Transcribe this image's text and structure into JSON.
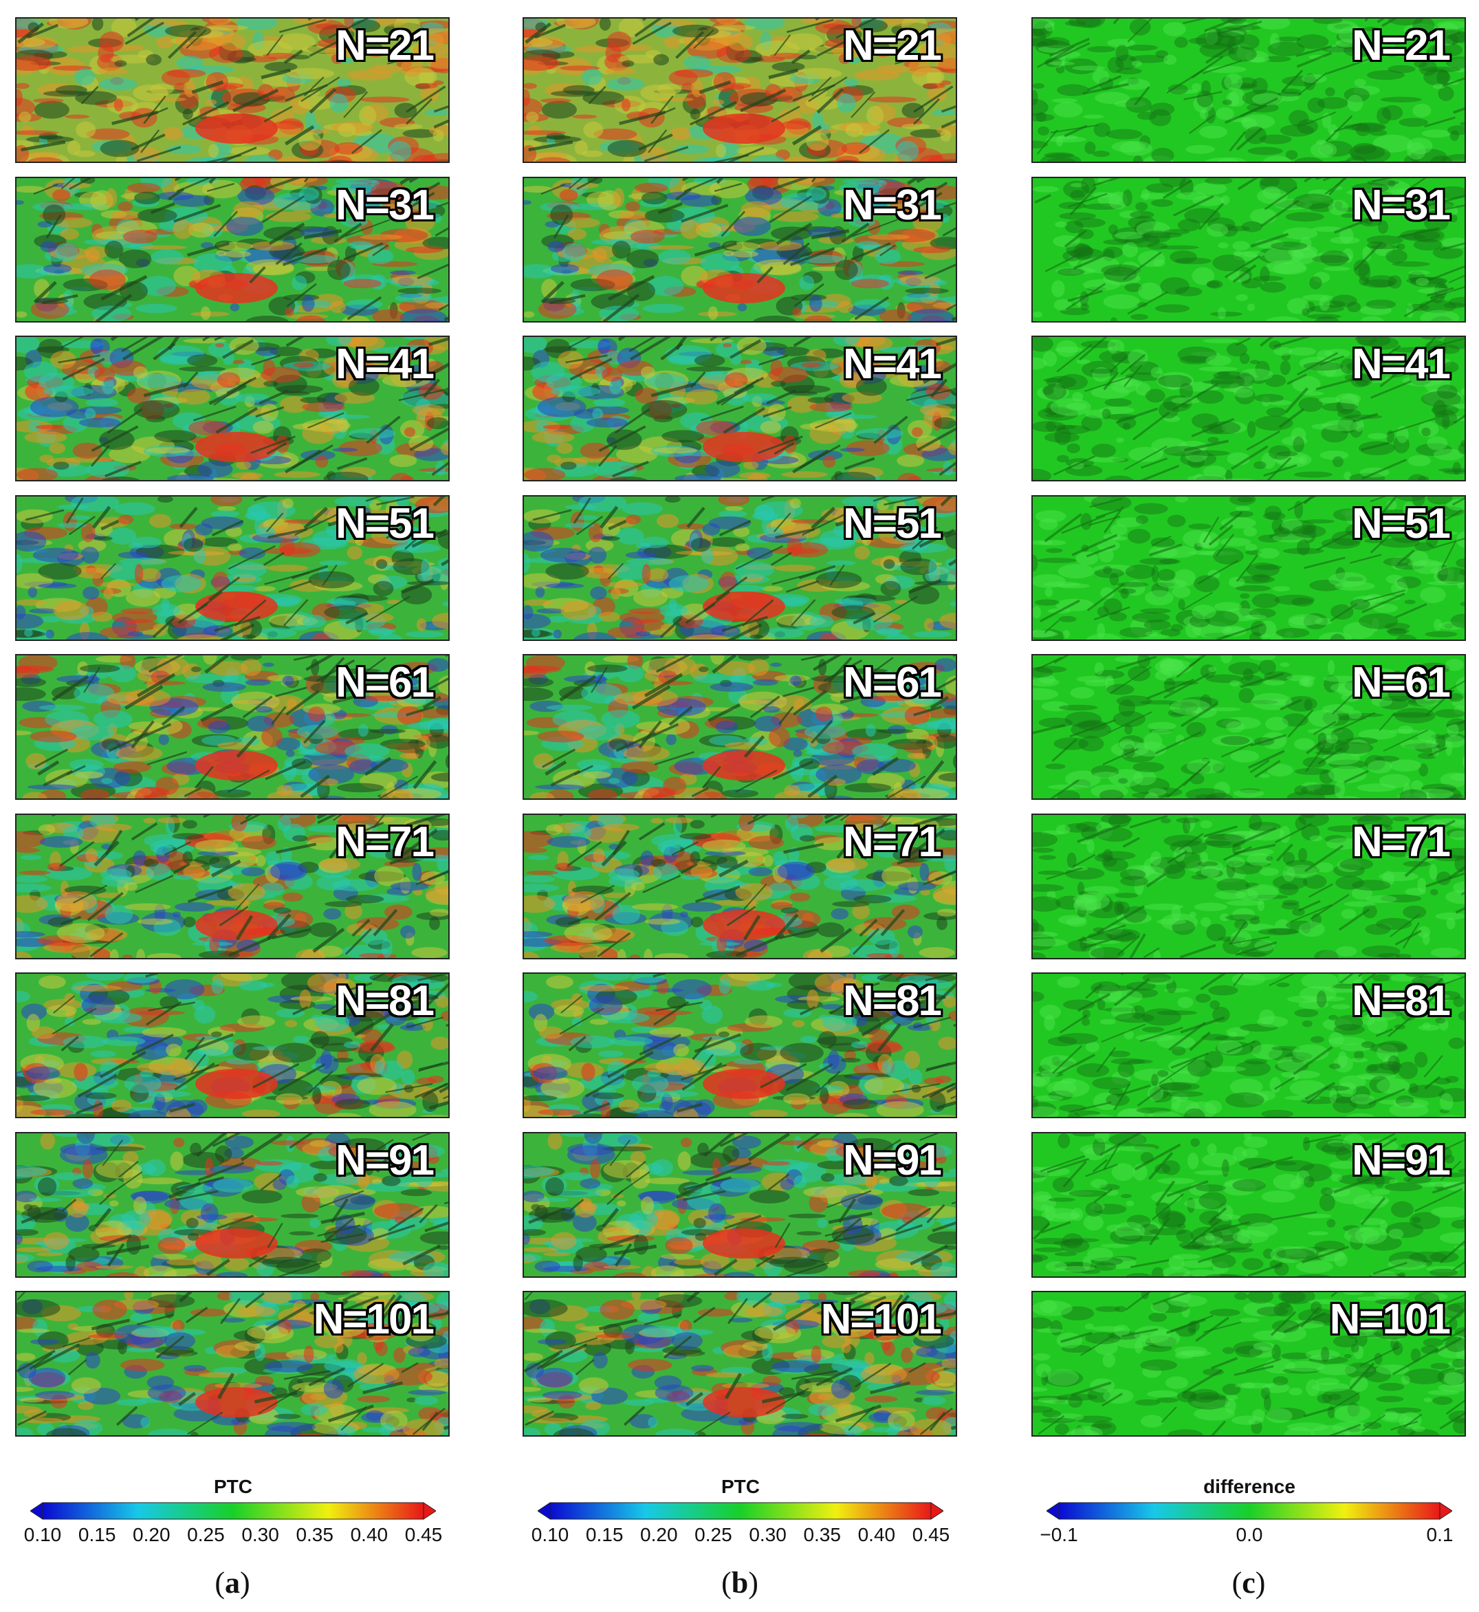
{
  "panel_labels": [
    "N=21",
    "N=31",
    "N=41",
    "N=51",
    "N=61",
    "N=71",
    "N=81",
    "N=91",
    "N=101"
  ],
  "columns": [
    {
      "letter": "a",
      "colormap": "ptc",
      "colorbar": {
        "title": "PTC",
        "ticks": [
          "0.10",
          "0.15",
          "0.20",
          "0.25",
          "0.30",
          "0.35",
          "0.40",
          "0.45"
        ],
        "range": [
          0.1,
          0.45
        ],
        "colors": [
          "#0a0ad0",
          "#18c8e8",
          "#18d028",
          "#f0f010",
          "#e81818"
        ]
      }
    },
    {
      "letter": "b",
      "colormap": "ptc",
      "colorbar": {
        "title": "PTC",
        "ticks": [
          "0.10",
          "0.15",
          "0.20",
          "0.25",
          "0.30",
          "0.35",
          "0.40",
          "0.45"
        ],
        "range": [
          0.1,
          0.45
        ],
        "colors": [
          "#0a0ad0",
          "#18c8e8",
          "#18d028",
          "#f0f010",
          "#e81818"
        ]
      }
    },
    {
      "letter": "c",
      "colormap": "difference",
      "colorbar": {
        "title": "difference",
        "ticks": [
          "−0.1",
          "0.0",
          "0.1"
        ],
        "range": [
          -0.1,
          0.1
        ],
        "colors": [
          "#0a0ad0",
          "#18c8e8",
          "#18d028",
          "#f0f010",
          "#e81818"
        ]
      }
    }
  ],
  "palette": {
    "ptc_base": "#3cb43c",
    "ptc_red": "#e6321e",
    "ptc_orange": "#e69628",
    "ptc_yellow": "#c8c83c",
    "ptc_cyan": "#28c8b4",
    "ptc_blue": "#2846c8",
    "ptc_dark": "#1e461e",
    "diff_base": "#22c822",
    "diff_dark": "#147014",
    "diff_light": "#4ee64e"
  }
}
